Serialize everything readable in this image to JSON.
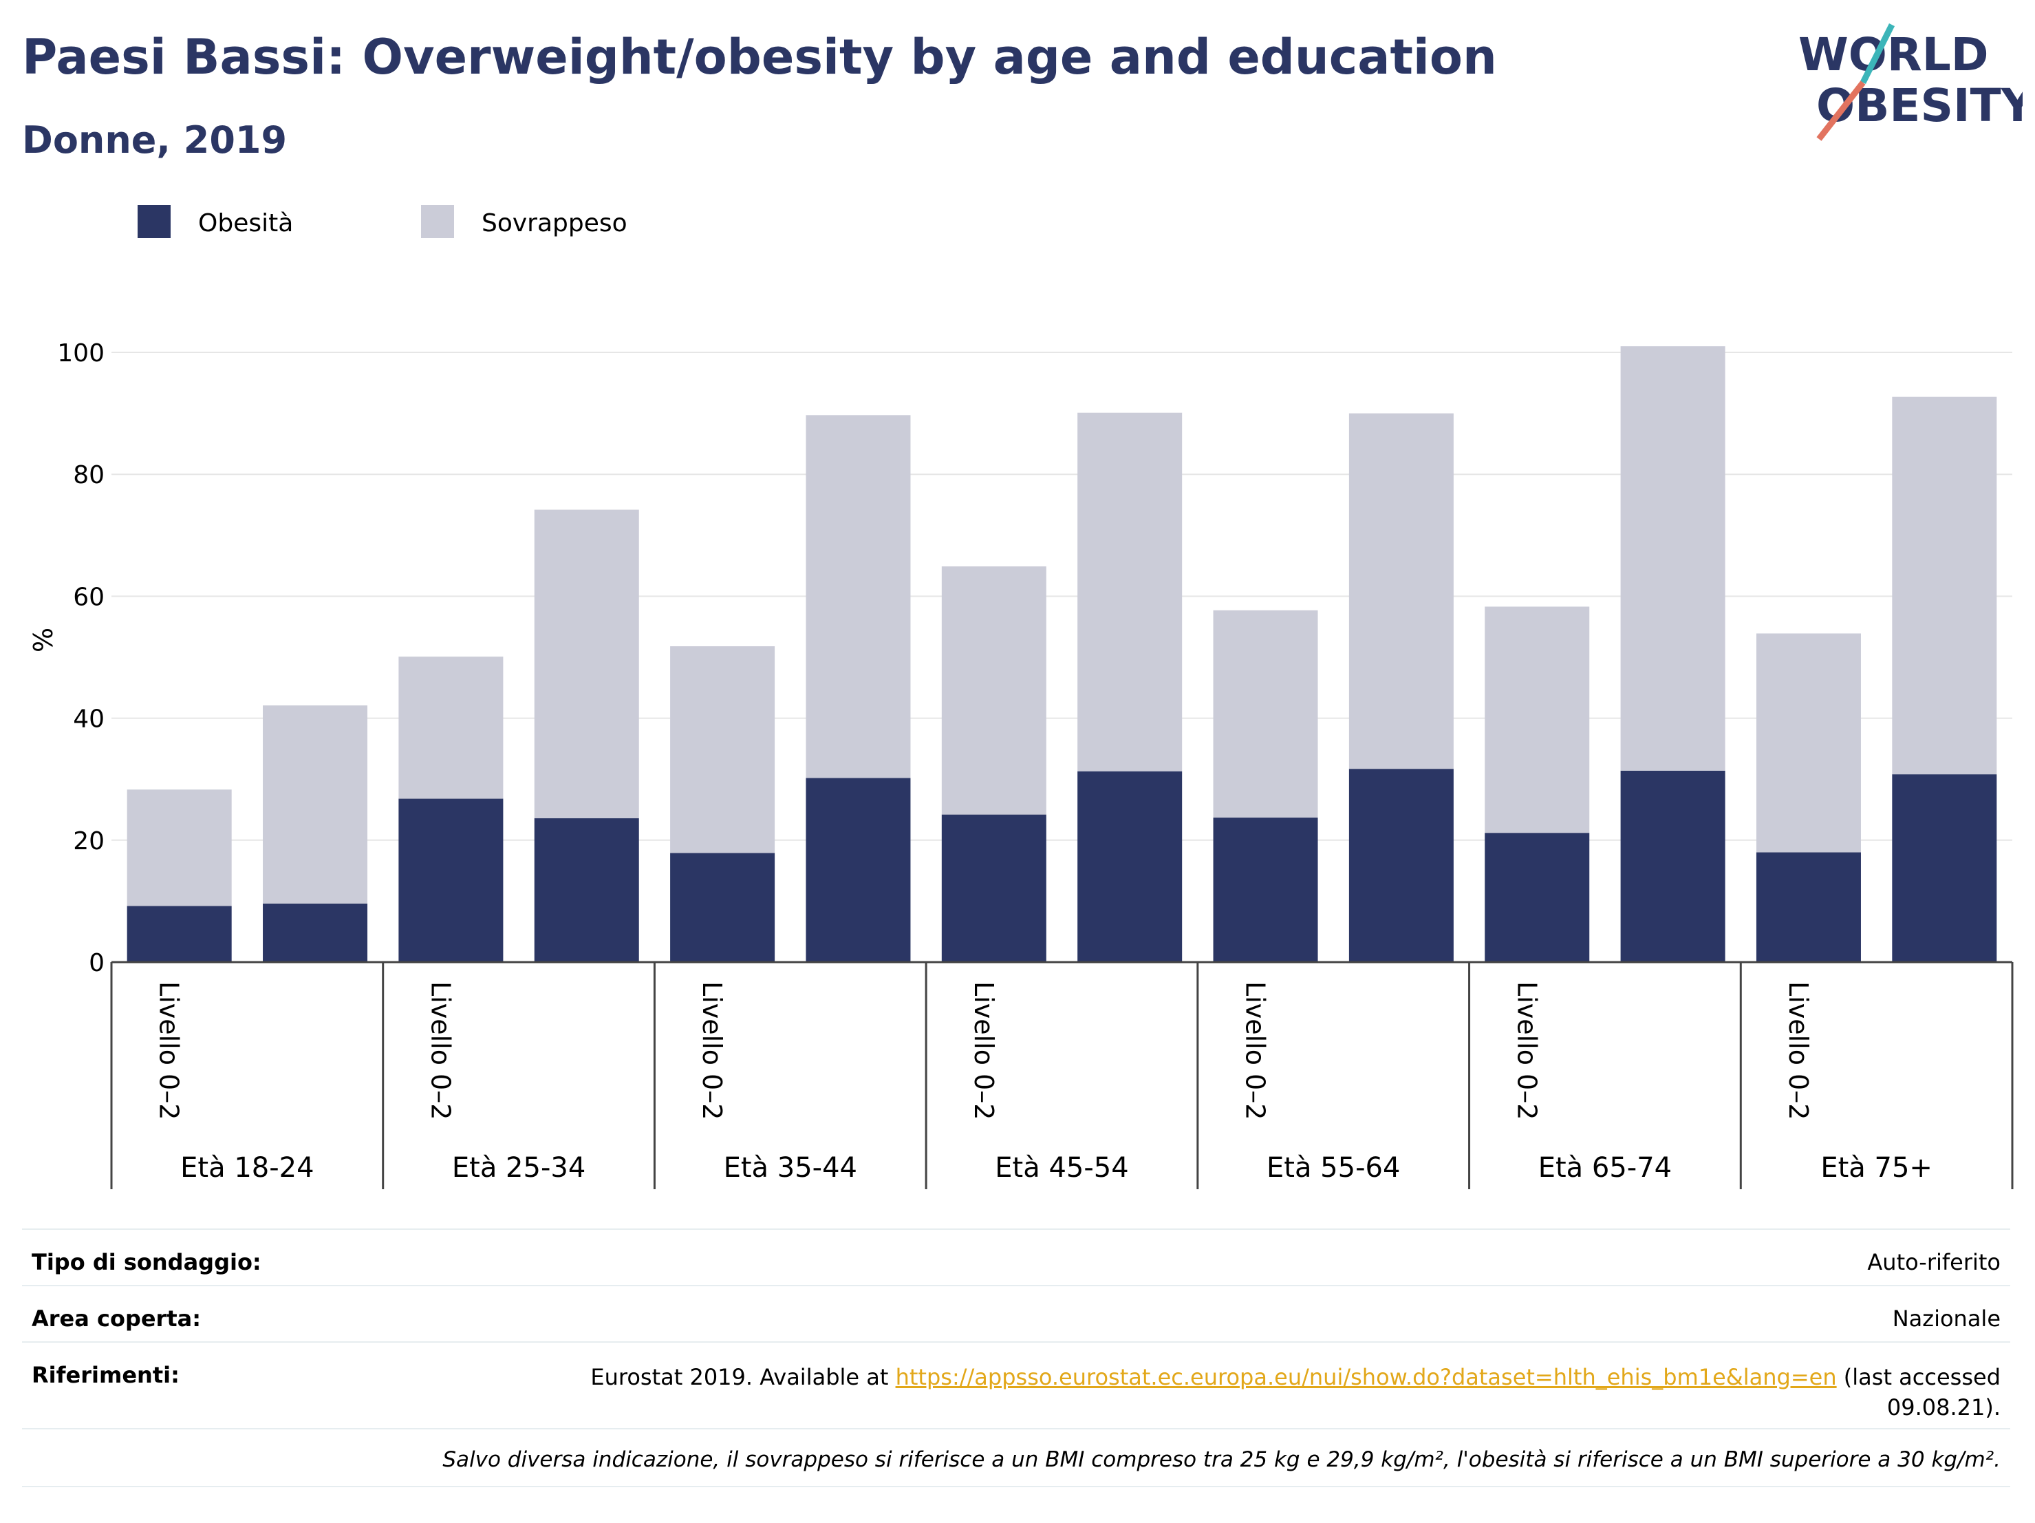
{
  "header": {
    "title": "Paesi Bassi: Overweight/obesity by age and education",
    "subtitle": "Donne, 2019",
    "logo_line1": "WORLD",
    "logo_line2": "OBESITY"
  },
  "colors": {
    "obesity": "#2b3664",
    "overweight": "#cbccd8",
    "title": "#2b3664",
    "grid": "#e6e6e6",
    "link": "#e2a719"
  },
  "chart_data": {
    "type": "bar",
    "stacked": true,
    "title": "Paesi Bassi: Overweight/obesity by age and education",
    "subtitle": "Donne, 2019",
    "ylabel": "%",
    "ylim": [
      0,
      100
    ],
    "yticks": [
      0,
      20,
      40,
      60,
      80,
      100
    ],
    "grid": true,
    "legend_position": "top-left",
    "groups": [
      "Età 18-24",
      "Età 25-34",
      "Età 35-44",
      "Età 45-54",
      "Età 55-64",
      "Età 65-74",
      "Età 75+"
    ],
    "bar_labels": [
      "Livello 0–2",
      "",
      "Livello 0–2",
      "",
      "Livello 0–2",
      "",
      "Livello 0–2",
      "",
      "Livello 0–2",
      "",
      "Livello 0–2",
      "",
      "Livello 0–2",
      ""
    ],
    "series": [
      {
        "name": "Obesità",
        "values": [
          9.2,
          9.6,
          26.8,
          23.6,
          17.9,
          30.2,
          24.2,
          31.3,
          23.7,
          31.7,
          21.2,
          31.4,
          18.0,
          30.8
        ]
      },
      {
        "name": "Sovrappeso",
        "values": [
          19.1,
          32.5,
          23.3,
          50.6,
          33.9,
          59.5,
          40.7,
          58.8,
          34.0,
          58.3,
          37.1,
          69.6,
          35.9,
          61.9
        ]
      }
    ]
  },
  "footer": {
    "survey_label": "Tipo di sondaggio:",
    "survey_value": "Auto-riferito",
    "area_label": "Area coperta:",
    "area_value": "Nazionale",
    "refs_label": "Riferimenti:",
    "refs_prefix": "Eurostat 2019. Available at ",
    "refs_link": "https://appsso.eurostat.ec.europa.eu/nui/show.do?dataset=hlth_ehis_bm1e&lang=en",
    "refs_suffix": " (last accessed",
    "refs_date": "09.08.21).",
    "note": "Salvo diversa indicazione, il sovrappeso si riferisce a un BMI compreso tra 25 kg e 29,9 kg/m², l'obesità si riferisce a un BMI superiore a 30 kg/m²."
  }
}
